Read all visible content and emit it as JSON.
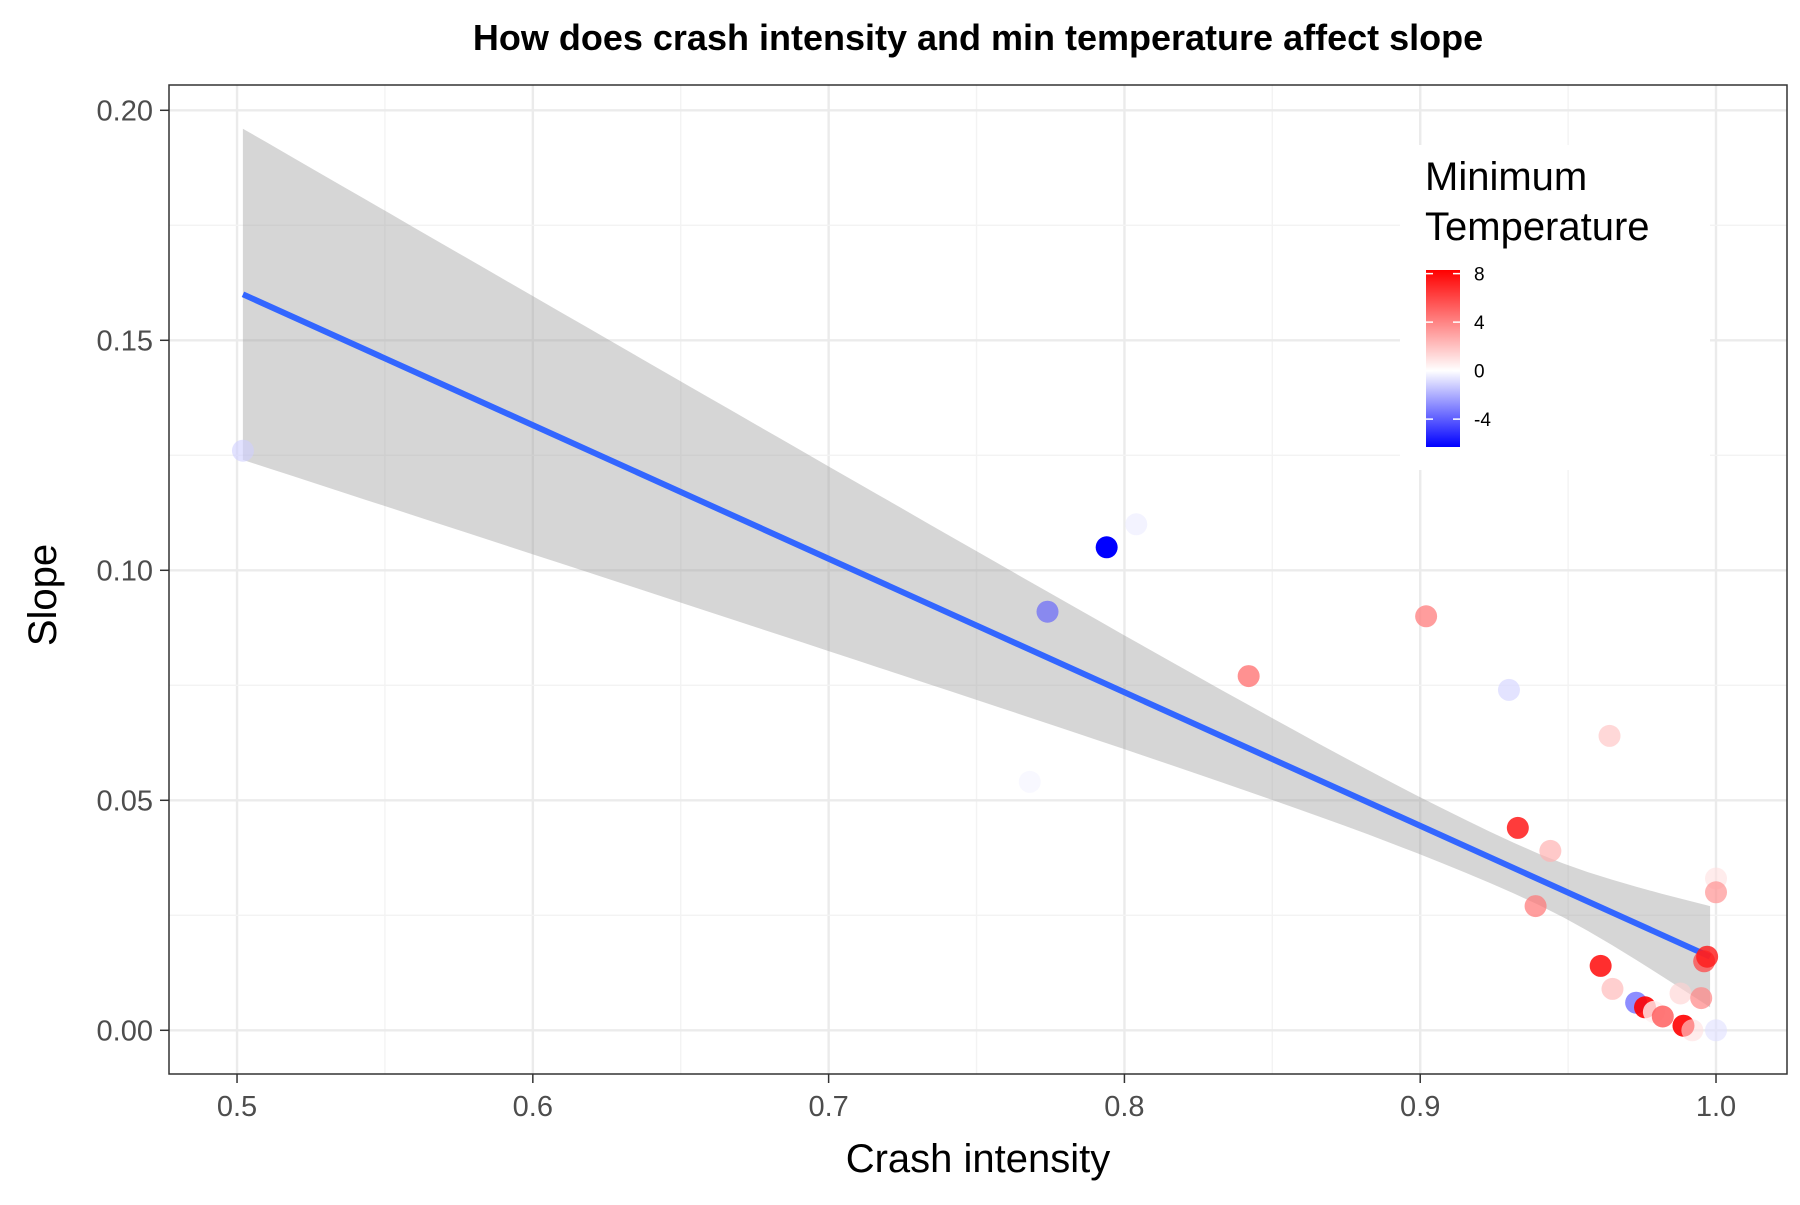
{
  "chart_data": {
    "type": "scatter",
    "title": "How does crash intensity and min temperature affect slope",
    "xlabel": "Crash intensity",
    "ylabel": "Slope",
    "xlim": [
      0.477,
      1.024
    ],
    "ylim": [
      -0.0095,
      0.2055
    ],
    "x_ticks": [
      0.5,
      0.6,
      0.7,
      0.8,
      0.9,
      1.0
    ],
    "x_tick_labels": [
      "0.5",
      "0.6",
      "0.7",
      "0.8",
      "0.9",
      "1.0"
    ],
    "y_ticks": [
      0.0,
      0.05,
      0.1,
      0.15,
      0.2
    ],
    "y_tick_labels": [
      "0.00",
      "0.05",
      "0.10",
      "0.15",
      "0.20"
    ],
    "grid": true,
    "legend": {
      "title_lines": [
        "Minimum",
        "Temperature"
      ],
      "placement": "top-right inside",
      "scale_min": -6.3,
      "scale_max": 8.3,
      "ticks": [
        8,
        4,
        0,
        -4
      ],
      "tick_labels": [
        "8",
        "4",
        "0",
        "-4"
      ],
      "low_color": "#0000ff",
      "mid_color": "#ffffff",
      "high_color": "#ff0000"
    },
    "points": [
      {
        "x": 0.502,
        "y": 0.126,
        "temp": -1.2,
        "alpha": 0.6
      },
      {
        "x": 0.768,
        "y": 0.054,
        "temp": -0.3,
        "alpha": 0.6
      },
      {
        "x": 0.774,
        "y": 0.091,
        "temp": -4.2,
        "alpha": 0.6
      },
      {
        "x": 0.794,
        "y": 0.105,
        "temp": -6.3,
        "alpha": 1.0
      },
      {
        "x": 0.804,
        "y": 0.11,
        "temp": -0.5,
        "alpha": 0.6
      },
      {
        "x": 0.842,
        "y": 0.077,
        "temp": 4.5,
        "alpha": 0.8
      },
      {
        "x": 0.902,
        "y": 0.09,
        "temp": 4.0,
        "alpha": 0.8
      },
      {
        "x": 0.93,
        "y": 0.074,
        "temp": -1.0,
        "alpha": 0.7
      },
      {
        "x": 0.933,
        "y": 0.044,
        "temp": 7.5,
        "alpha": 0.85
      },
      {
        "x": 0.939,
        "y": 0.027,
        "temp": 4.5,
        "alpha": 0.7
      },
      {
        "x": 0.944,
        "y": 0.039,
        "temp": 2.5,
        "alpha": 0.7
      },
      {
        "x": 0.961,
        "y": 0.014,
        "temp": 8.0,
        "alpha": 0.85
      },
      {
        "x": 0.964,
        "y": 0.064,
        "temp": 1.8,
        "alpha": 0.7
      },
      {
        "x": 0.965,
        "y": 0.009,
        "temp": 2.2,
        "alpha": 0.7
      },
      {
        "x": 0.973,
        "y": 0.006,
        "temp": -4.0,
        "alpha": 0.7
      },
      {
        "x": 0.976,
        "y": 0.005,
        "temp": 8.3,
        "alpha": 0.9
      },
      {
        "x": 0.979,
        "y": 0.004,
        "temp": 0.5,
        "alpha": 0.8
      },
      {
        "x": 0.982,
        "y": 0.003,
        "temp": 5.5,
        "alpha": 0.8
      },
      {
        "x": 0.988,
        "y": 0.008,
        "temp": 1.5,
        "alpha": 0.6
      },
      {
        "x": 0.989,
        "y": 0.001,
        "temp": 8.3,
        "alpha": 0.9
      },
      {
        "x": 0.992,
        "y": 0.0,
        "temp": 1.0,
        "alpha": 0.6
      },
      {
        "x": 0.995,
        "y": 0.007,
        "temp": 4.0,
        "alpha": 0.7
      },
      {
        "x": 0.996,
        "y": 0.015,
        "temp": 6.0,
        "alpha": 0.75
      },
      {
        "x": 0.997,
        "y": 0.016,
        "temp": 7.5,
        "alpha": 0.8
      },
      {
        "x": 1.0,
        "y": 0.033,
        "temp": 1.0,
        "alpha": 0.6
      },
      {
        "x": 1.0,
        "y": 0.03,
        "temp": 3.5,
        "alpha": 0.7
      },
      {
        "x": 1.0,
        "y": 0.0,
        "temp": -0.8,
        "alpha": 0.6
      }
    ],
    "fit_line": {
      "method": "linear",
      "color": "#3366ff",
      "x": [
        0.502,
        0.998
      ],
      "y": [
        0.16,
        0.016
      ]
    },
    "confidence_band": {
      "color": "#999999",
      "upper": [
        {
          "x": 0.502,
          "y": 0.196
        },
        {
          "x": 0.998,
          "y": 0.027
        }
      ],
      "lower": [
        {
          "x": 0.502,
          "y": 0.126
        },
        {
          "x": 0.998,
          "y": 0.007
        }
      ],
      "center_x": 0.935,
      "center_y": 0.035,
      "center_halfwidth": 0.0055
    }
  }
}
